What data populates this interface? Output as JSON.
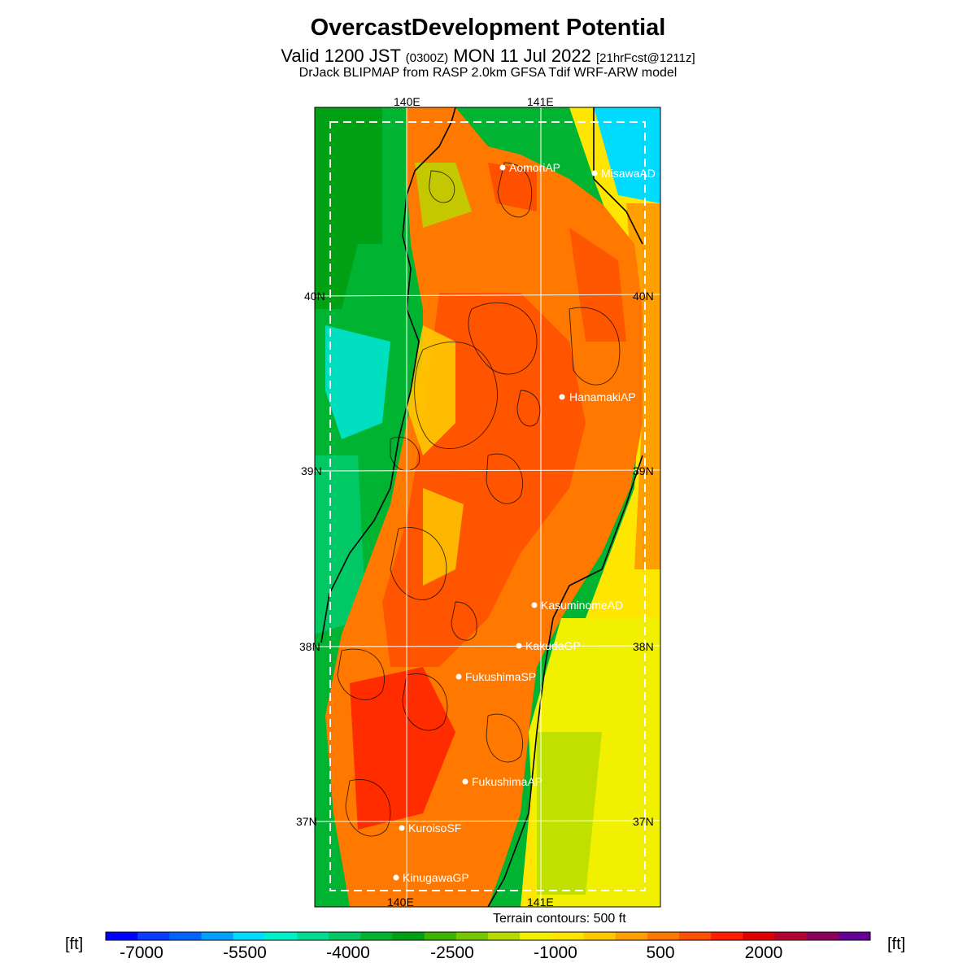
{
  "header": {
    "title": "OvercastDevelopment Potential",
    "valid_prefix": "Valid 1200 JST",
    "utc_time": "(0300Z)",
    "valid_date": "MON 11 Jul 2022",
    "forecast_info": "[21hrFcst@1211z]",
    "model_line": "DrJack BLIPMAP from RASP 2.0km GFSA Tdif WRF-ARW model"
  },
  "map": {
    "longitude_labels": [
      "140E",
      "141E"
    ],
    "latitude_labels": [
      "40N",
      "39N",
      "38N",
      "37N"
    ],
    "sites": [
      {
        "name": "AomoriAP"
      },
      {
        "name": "MisawaAD"
      },
      {
        "name": "HanamakiAP"
      },
      {
        "name": "KasuminomeAD"
      },
      {
        "name": "KakudaGP"
      },
      {
        "name": "FukushimaSP"
      },
      {
        "name": "FukushimaAP"
      },
      {
        "name": "KuroisoSF"
      },
      {
        "name": "KinugawaGP"
      }
    ],
    "terrain_contours": "Terrain contours: 500 ft"
  },
  "colorbar": {
    "unit_left": "[ft]",
    "unit_right": "[ft]",
    "tick_labels": [
      "-7000",
      "-5500",
      "-4000",
      "-2500",
      "-1000",
      "500",
      "2000"
    ],
    "colors": [
      "#0000ff",
      "#0a3cff",
      "#0064ff",
      "#00a0ff",
      "#00dcff",
      "#00f0c8",
      "#00dc96",
      "#00c864",
      "#00b432",
      "#00a014",
      "#3cb400",
      "#78c800",
      "#b4dc00",
      "#f0f000",
      "#ffe600",
      "#ffc800",
      "#ffa000",
      "#ff7800",
      "#ff5000",
      "#ff1e00",
      "#dc0000",
      "#b40032",
      "#8c005a",
      "#640096"
    ]
  }
}
